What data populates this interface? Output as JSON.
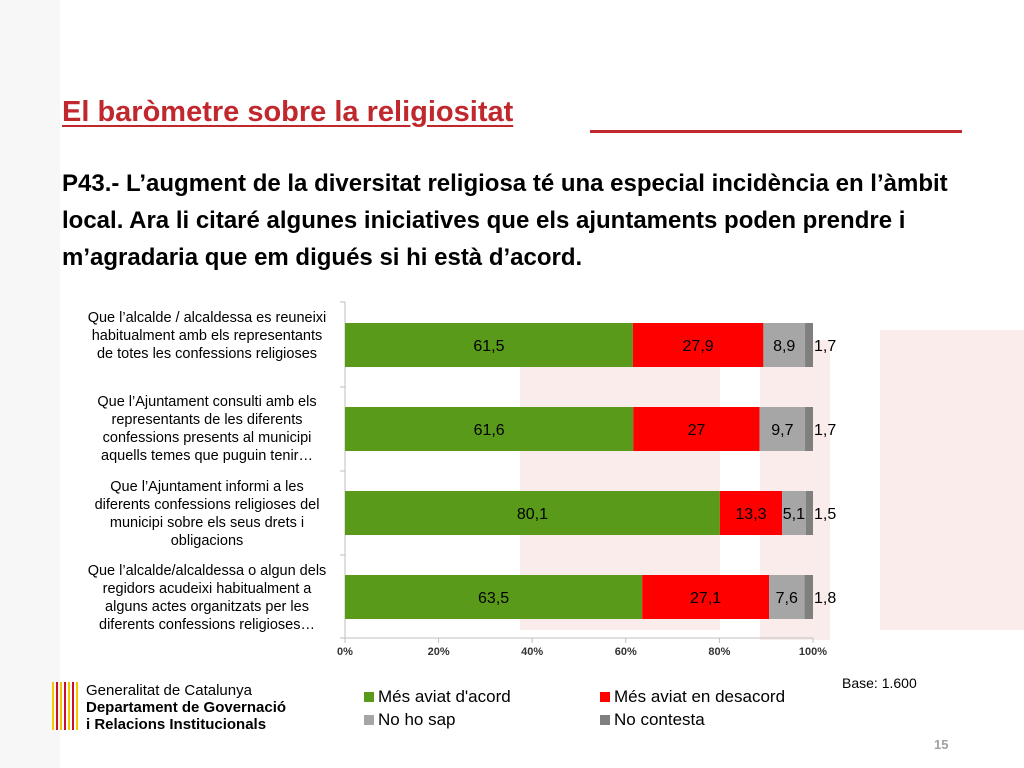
{
  "slide": {
    "title": "El baròmetre sobre la religiositat",
    "question": "P43.- L’augment de la diversitat religiosa té una especial incidència en l’àmbit local. Ara li citaré algunes iniciatives que els ajuntaments poden prendre i m’agradaria que em digués si hi està d’acord.",
    "base_note": "Base: 1.600",
    "page_number": "15"
  },
  "logo": {
    "line1": "Generalitat de Catalunya",
    "line2": "Departament de Governació",
    "line3": "i Relacions Institucionals",
    "mark_colors": [
      "#c8102e",
      "#f6c700"
    ]
  },
  "chart_data": {
    "type": "bar",
    "orientation": "horizontal",
    "stacked": true,
    "percent_stacked": true,
    "categories": [
      "Que l’alcalde / alcaldessa es reuneixi habitualment  amb els representants de totes les confessions religioses",
      "Que l’Ajuntament  consulti amb els representants de les diferents confessions presents al municipi aquells temes que puguin tenir…",
      "Que l’Ajuntament  informi a les diferents confessions religioses del municipi  sobre els seus drets i obligacions",
      "Que l’alcalde/alcaldessa  o algun dels regidors acudeixi habitualment a alguns  actes organitzats per les diferents confessions religioses…"
    ],
    "series": [
      {
        "name": "Més aviat d'acord",
        "color": "#5a9a1a",
        "values": [
          61.5,
          61.6,
          80.1,
          63.5
        ],
        "labels": [
          "61,5",
          "61,6",
          "80,1",
          "63,5"
        ]
      },
      {
        "name": "Més aviat en desacord",
        "color": "#ff0000",
        "values": [
          27.9,
          27,
          13.3,
          27.1
        ],
        "labels": [
          "27,9",
          "27",
          "13,3",
          "27,1"
        ]
      },
      {
        "name": "No ho sap",
        "color": "#a6a6a6",
        "values": [
          8.9,
          9.7,
          5.1,
          7.6
        ],
        "labels": [
          "8,9",
          "9,7",
          "5,1",
          "7,6"
        ]
      },
      {
        "name": "No contesta",
        "color": "#7f7f7f",
        "values": [
          1.7,
          1.7,
          1.5,
          1.8
        ],
        "labels": [
          "1,7",
          "1,7",
          "1,5",
          "1,8"
        ]
      }
    ],
    "xlim": [
      0,
      100
    ],
    "x_ticks": [
      "0%",
      "20%",
      "40%",
      "60%",
      "80%",
      "100%"
    ],
    "legend_position": "bottom",
    "grid": false
  }
}
